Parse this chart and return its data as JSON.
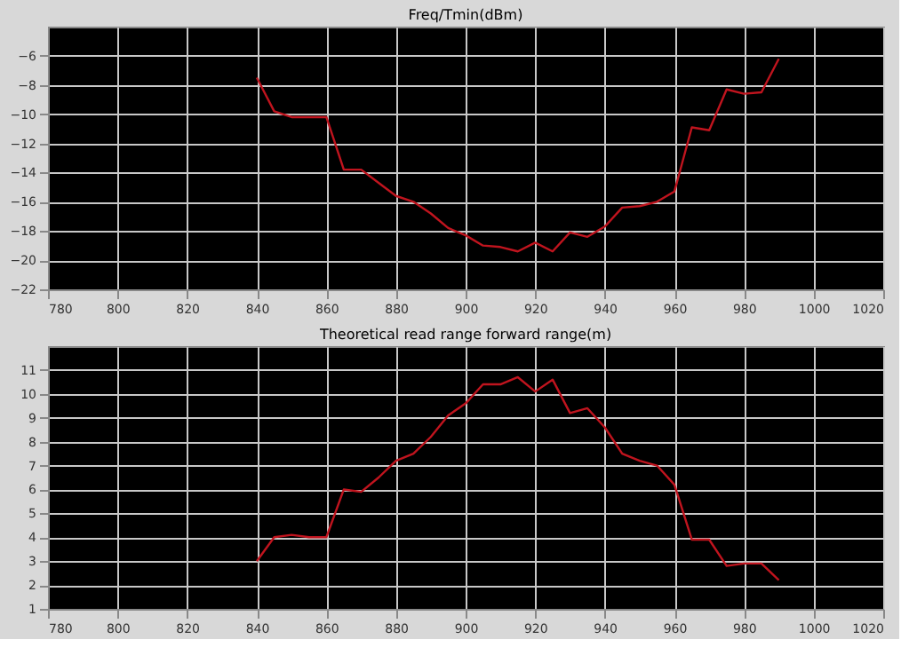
{
  "chart_data": [
    {
      "type": "line",
      "title": "Freq/Tmin(dBm)",
      "x": [
        840,
        845,
        850,
        855,
        860,
        865,
        870,
        875,
        880,
        885,
        890,
        895,
        900,
        905,
        910,
        915,
        920,
        925,
        930,
        935,
        940,
        945,
        950,
        955,
        960,
        965,
        970,
        975,
        980,
        985,
        990
      ],
      "series": [
        {
          "color": "#c0141e",
          "values": [
            -7.5,
            -9.8,
            -10.2,
            -10.2,
            -10.2,
            -13.8,
            -13.8,
            -14.7,
            -15.6,
            -16,
            -16.8,
            -17.8,
            -18.3,
            -19,
            -19.1,
            -19.4,
            -18.8,
            -19.4,
            -18.1,
            -18.4,
            -17.7,
            -16.4,
            -16.3,
            -16,
            -15.3,
            -10.9,
            -11.1,
            -8.3,
            -8.6,
            -8.5,
            -6.2
          ]
        }
      ],
      "xlim": [
        780,
        1020
      ],
      "xticks": [
        780,
        800,
        820,
        840,
        860,
        880,
        900,
        920,
        940,
        960,
        980,
        1000,
        1020
      ],
      "ylim": [
        -22,
        -4
      ],
      "yticks": [
        -22,
        -20,
        -18,
        -16,
        -14,
        -12,
        -10,
        -8,
        -6
      ],
      "grid": true,
      "marker": "none",
      "line_style": "solid"
    },
    {
      "type": "line",
      "title": "Theoretical read range forward range(m)",
      "x": [
        840,
        845,
        850,
        855,
        860,
        865,
        870,
        875,
        880,
        885,
        890,
        895,
        900,
        905,
        910,
        915,
        920,
        925,
        930,
        935,
        940,
        945,
        950,
        955,
        960,
        965,
        970,
        975,
        980,
        985,
        990
      ],
      "series": [
        {
          "color": "#c0141e",
          "values": [
            3.0,
            4.0,
            4.1,
            4.0,
            4.0,
            6.0,
            5.9,
            6.5,
            7.2,
            7.5,
            8.2,
            9.1,
            9.6,
            10.4,
            10.4,
            10.7,
            10.1,
            10.6,
            9.2,
            9.4,
            8.6,
            7.5,
            7.2,
            7.0,
            6.2,
            3.9,
            3.9,
            2.8,
            2.9,
            2.9,
            2.2
          ]
        }
      ],
      "xlim": [
        780,
        1020
      ],
      "xticks": [
        780,
        800,
        820,
        840,
        860,
        880,
        900,
        920,
        940,
        960,
        980,
        1000,
        1020
      ],
      "ylim": [
        1,
        12
      ],
      "yticks": [
        1,
        2,
        3,
        4,
        5,
        6,
        7,
        8,
        9,
        10,
        11
      ],
      "grid": true,
      "marker": "none",
      "line_style": "solid"
    }
  ]
}
